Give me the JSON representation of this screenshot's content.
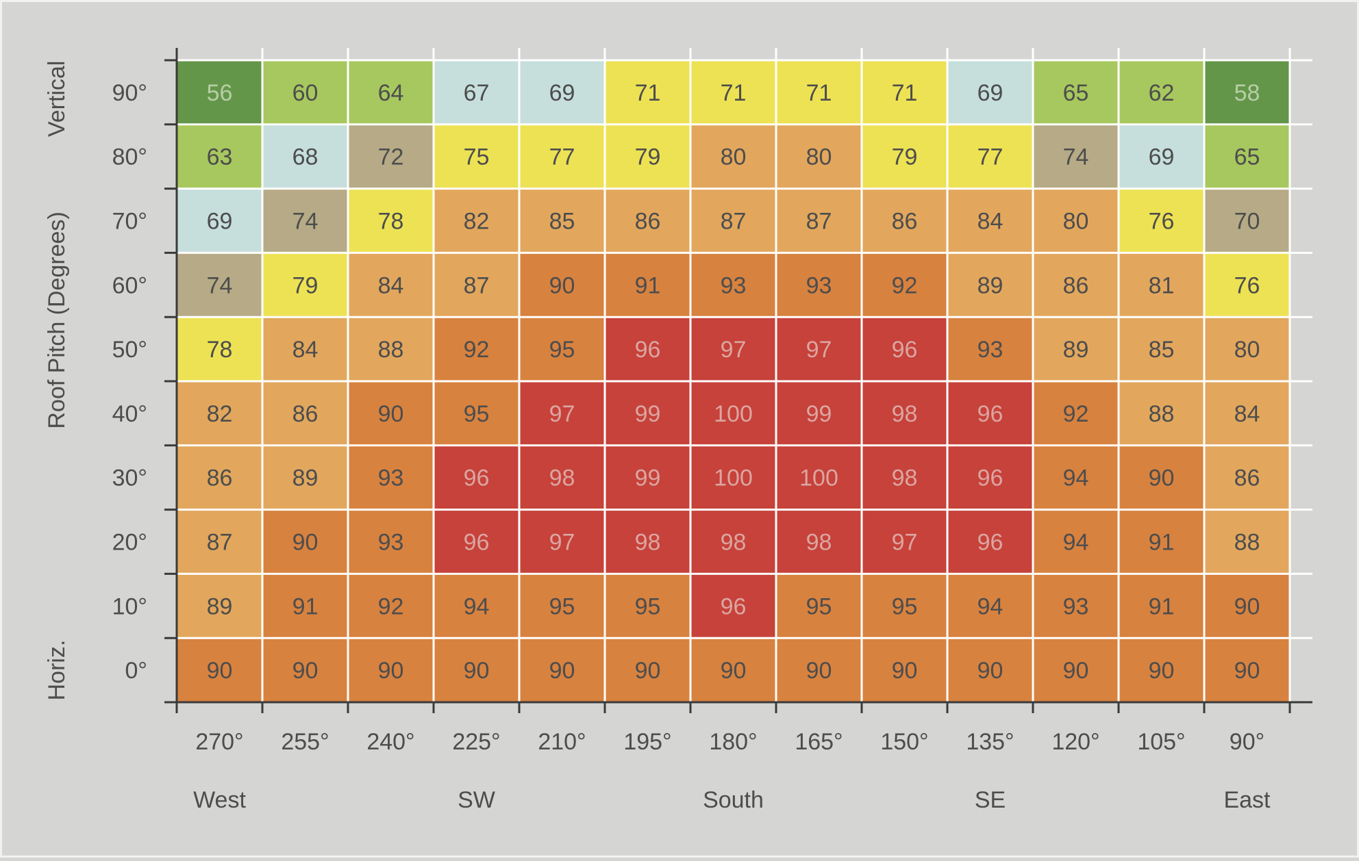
{
  "chart_data": {
    "type": "heatmap",
    "title": "",
    "xlabel": "",
    "ylabel": "Roof Pitch (Degrees)",
    "y_group_labels": {
      "top": "Vertical",
      "bottom": "Horiz."
    },
    "x": [
      "270°",
      "255°",
      "240°",
      "225°",
      "210°",
      "195°",
      "180°",
      "165°",
      "150°",
      "135°",
      "120°",
      "105°",
      "90°"
    ],
    "x_groups": [
      {
        "label": "West",
        "column": 0
      },
      {
        "label": "SW",
        "column": 3
      },
      {
        "label": "South",
        "column": 6
      },
      {
        "label": "SE",
        "column": 9
      },
      {
        "label": "East",
        "column": 12
      }
    ],
    "y": [
      "90°",
      "80°",
      "70°",
      "60°",
      "50°",
      "40°",
      "30°",
      "20°",
      "10°",
      "0°"
    ],
    "values": [
      [
        56,
        60,
        64,
        67,
        69,
        71,
        71,
        71,
        71,
        69,
        65,
        62,
        58
      ],
      [
        63,
        68,
        72,
        75,
        77,
        79,
        80,
        80,
        79,
        77,
        74,
        69,
        65
      ],
      [
        69,
        74,
        78,
        82,
        85,
        86,
        87,
        87,
        86,
        84,
        80,
        76,
        70
      ],
      [
        74,
        79,
        84,
        87,
        90,
        91,
        93,
        93,
        92,
        89,
        86,
        81,
        76
      ],
      [
        78,
        84,
        88,
        92,
        95,
        96,
        97,
        97,
        96,
        93,
        89,
        85,
        80
      ],
      [
        82,
        86,
        90,
        95,
        97,
        99,
        100,
        99,
        98,
        96,
        92,
        88,
        84
      ],
      [
        86,
        89,
        93,
        96,
        98,
        99,
        100,
        100,
        98,
        96,
        94,
        90,
        86
      ],
      [
        87,
        90,
        93,
        96,
        97,
        98,
        98,
        98,
        97,
        96,
        94,
        91,
        88
      ],
      [
        89,
        91,
        92,
        94,
        95,
        95,
        96,
        95,
        95,
        94,
        93,
        91,
        90
      ],
      [
        90,
        90,
        90,
        90,
        90,
        90,
        90,
        90,
        90,
        90,
        90,
        90,
        90
      ]
    ],
    "color_bands": [
      {
        "min": 0,
        "max": 59,
        "color": "#649649",
        "text": "#b6cfa6"
      },
      {
        "min": 60,
        "max": 66,
        "color": "#a7c85e",
        "text": "#4d4d4d"
      },
      {
        "min": 67,
        "max": 70,
        "color": "#c6dfdc",
        "text": "#4d4d4d"
      },
      {
        "min": 71,
        "max": 71,
        "color": "#ede254",
        "text": "#4d4d4d"
      },
      {
        "min": 72,
        "max": 74,
        "color": "#b6ab86",
        "text": "#4d4d4d"
      },
      {
        "min": 75,
        "max": 79,
        "color": "#ede254",
        "text": "#4d4d4d"
      },
      {
        "min": 80,
        "max": 89,
        "color": "#e2a75d",
        "text": "#4d4d4d"
      },
      {
        "min": 90,
        "max": 95,
        "color": "#d8823f",
        "text": "#4d4d4d"
      },
      {
        "min": 96,
        "max": 100,
        "color": "#c6423a",
        "text": "#dca5a1"
      }
    ],
    "overrides": [
      {
        "row": 2,
        "col": 12,
        "color": "#b6ab86"
      },
      {
        "row": 7,
        "col": 12,
        "color": "#e2a75d"
      },
      {
        "row": 8,
        "col": 0,
        "color": "#e2a75d"
      }
    ],
    "grid_line_color": "#ffffff",
    "axis_color": "#3a3a3a"
  }
}
